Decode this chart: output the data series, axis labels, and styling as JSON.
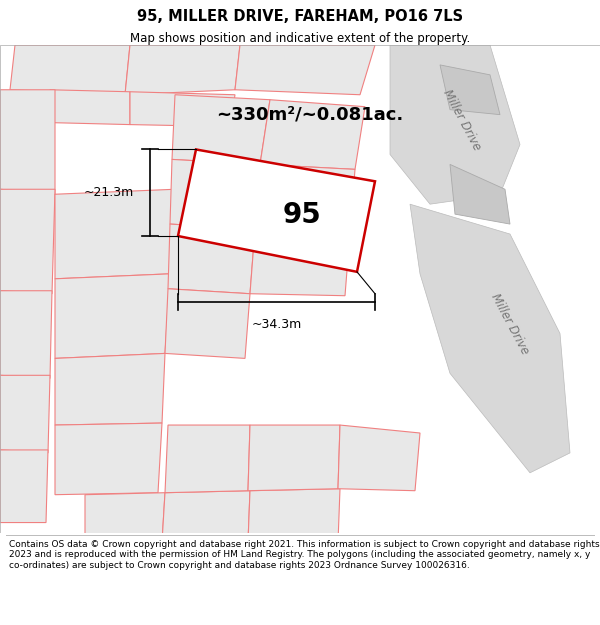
{
  "title": "95, MILLER DRIVE, FAREHAM, PO16 7LS",
  "subtitle": "Map shows position and indicative extent of the property.",
  "footer": "Contains OS data © Crown copyright and database right 2021. This information is subject to Crown copyright and database rights 2023 and is reproduced with the permission of HM Land Registry. The polygons (including the associated geometry, namely x, y co-ordinates) are subject to Crown copyright and database rights 2023 Ordnance Survey 100026316.",
  "area_text": "~330m²/~0.081ac.",
  "property_label": "95",
  "dim_width": "~34.3m",
  "dim_height": "~21.3m",
  "road_label_1": "Miller Drive",
  "road_label_2": "Miller Drive",
  "highlight_color": "#cc0000",
  "parcel_fill": "#e8e8e8",
  "parcel_edge": "#f08080",
  "road_fill": "#d8d8d8",
  "road_edge": "#cccccc",
  "white": "#ffffff"
}
